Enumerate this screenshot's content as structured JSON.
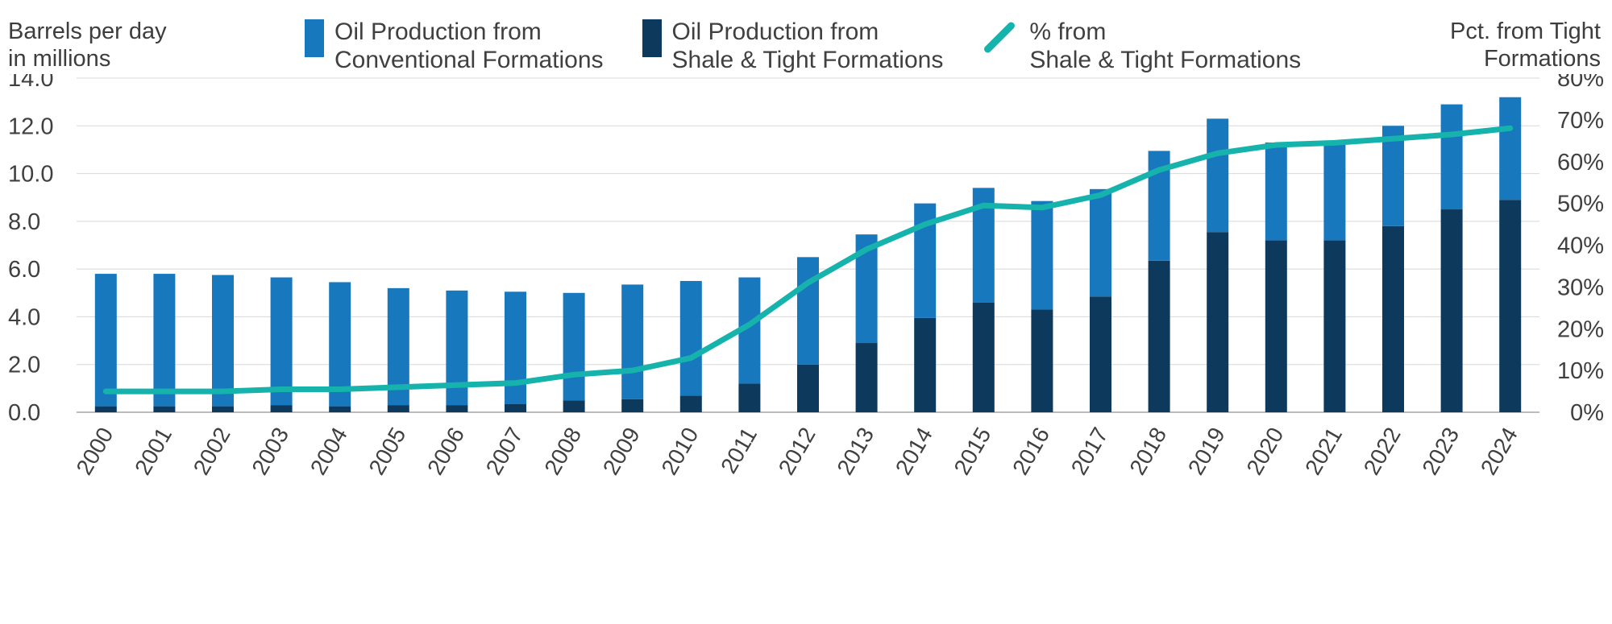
{
  "header": {
    "left_axis_title": "Barrels per day\nin millions",
    "right_axis_title": "Pct. from Tight\nFormations",
    "legend": [
      {
        "label": "Oil Production from\nConventional Formations",
        "marker": "bar-swatch",
        "color": "#1878be"
      },
      {
        "label": "Oil Production from\nShale & Tight Formations",
        "marker": "bar-swatch",
        "color": "#0d3a5c"
      },
      {
        "label": "% from\nShale & Tight Formations",
        "marker": "line-mark",
        "color": "#16b3ac"
      }
    ]
  },
  "chart_data": {
    "type": "bar",
    "subtype": "stacked-bars-with-line",
    "categories": [
      "2000",
      "2001",
      "2002",
      "2003",
      "2004",
      "2005",
      "2006",
      "2007",
      "2008",
      "2009",
      "2010",
      "2011",
      "2012",
      "2013",
      "2014",
      "2015",
      "2016",
      "2017",
      "2018",
      "2019",
      "2020",
      "2021",
      "2022",
      "2023",
      "2024"
    ],
    "series": [
      {
        "name": "Oil Production from Shale & Tight Formations",
        "type": "bar",
        "stack": "production",
        "color": "#0d3a5c",
        "axis": "left",
        "values": [
          0.25,
          0.25,
          0.25,
          0.3,
          0.25,
          0.3,
          0.3,
          0.35,
          0.5,
          0.55,
          0.7,
          1.2,
          2.0,
          2.9,
          3.95,
          4.6,
          4.3,
          4.85,
          6.35,
          7.55,
          7.2,
          7.2,
          7.8,
          8.5,
          8.9
        ]
      },
      {
        "name": "Oil Production from Conventional Formations",
        "type": "bar",
        "stack": "production",
        "color": "#1878be",
        "axis": "left",
        "values": [
          5.55,
          5.55,
          5.5,
          5.35,
          5.2,
          4.9,
          4.8,
          4.7,
          4.5,
          4.8,
          4.8,
          4.45,
          4.5,
          4.55,
          4.8,
          4.8,
          4.55,
          4.5,
          4.6,
          4.75,
          4.1,
          4.0,
          4.2,
          4.4,
          4.3
        ]
      },
      {
        "name": "% from Shale & Tight Formations",
        "type": "line",
        "color": "#16b3ac",
        "axis": "right",
        "values": [
          5,
          5,
          5,
          5.5,
          5.5,
          6,
          6.5,
          7,
          9,
          10,
          13,
          21,
          31,
          39,
          45,
          49.5,
          49,
          52,
          58,
          62,
          64,
          64.5,
          65.5,
          66.5,
          68
        ]
      }
    ],
    "left_axis": {
      "title": "Barrels per day in millions",
      "min": 0,
      "max": 14,
      "step": 2,
      "tick_format": "one-decimal"
    },
    "right_axis": {
      "title": "Pct. from Tight Formations",
      "min": 0,
      "max": 80,
      "step": 10,
      "tick_format": "percent"
    },
    "grid": true,
    "legend_position": "top",
    "colors": {
      "grid_line": "#d8d8d8",
      "baseline": "#a6a6a6",
      "tick_text": "#404040"
    }
  }
}
